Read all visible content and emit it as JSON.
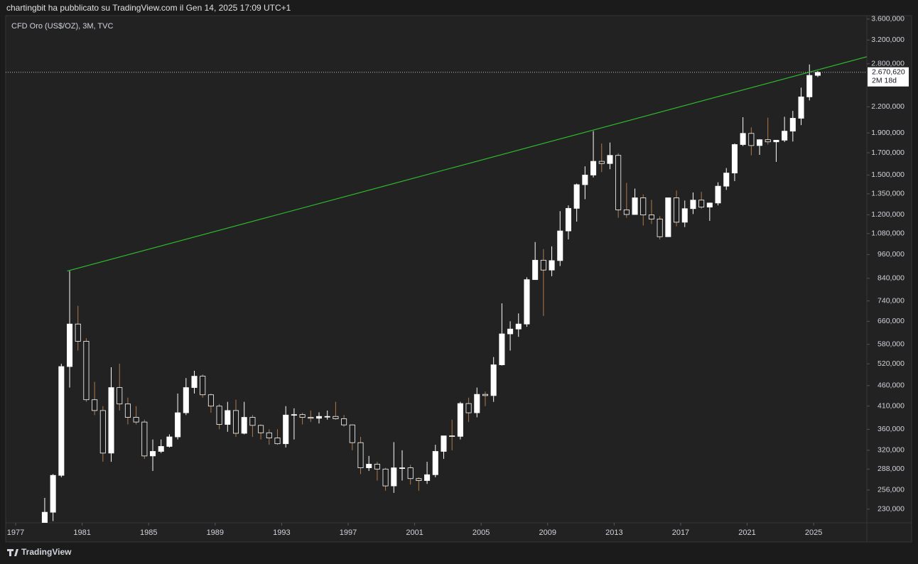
{
  "header": "chartingbit ha pubblicato su TradingView.com il Gen 14, 2025 17:09 UTC+1",
  "footer": "TradingView",
  "chart_data": {
    "type": "candlestick",
    "title": "CFD Oro (US$/OZ), 3M, TVC",
    "log_scale": true,
    "up_color": "#ffffff",
    "down_color": "#1e1e1e",
    "wick_color": "#b07a4a",
    "trendline_color": "#2fb82f",
    "xlim": [
      1976.4,
      2028.2
    ],
    "xticks": [
      1977,
      1981,
      1985,
      1989,
      1993,
      1997,
      2001,
      2005,
      2009,
      2013,
      2017,
      2021,
      2025
    ],
    "ylim": [
      213,
      3670
    ],
    "yticks": [
      {
        "value": 230,
        "label": "230,000"
      },
      {
        "value": 256,
        "label": "256,000"
      },
      {
        "value": 288,
        "label": "288,000"
      },
      {
        "value": 320,
        "label": "320,000"
      },
      {
        "value": 360,
        "label": "360,000"
      },
      {
        "value": 410,
        "label": "410,000"
      },
      {
        "value": 460,
        "label": "460,000"
      },
      {
        "value": 520,
        "label": "520,000"
      },
      {
        "value": 580,
        "label": "580,000"
      },
      {
        "value": 660,
        "label": "660,000"
      },
      {
        "value": 740,
        "label": "740,000"
      },
      {
        "value": 840,
        "label": "840,000"
      },
      {
        "value": 960,
        "label": "960,000"
      },
      {
        "value": 1080,
        "label": "1.080,000"
      },
      {
        "value": 1200,
        "label": "1.200,000"
      },
      {
        "value": 1350,
        "label": "1.350,000"
      },
      {
        "value": 1500,
        "label": "1.500,000"
      },
      {
        "value": 1700,
        "label": "1.700,000"
      },
      {
        "value": 1900,
        "label": "1.900,000"
      },
      {
        "value": 2200,
        "label": "2.200,000"
      },
      {
        "value": 2800,
        "label": "2.800,000"
      },
      {
        "value": 3200,
        "label": "3.200,000"
      },
      {
        "value": 3600,
        "label": "3.600,000"
      }
    ],
    "last_price": {
      "value": 2670.62,
      "label": "2.670,620"
    },
    "countdown": "2M 18d",
    "trendline": {
      "x": [
        1980.1,
        2028.2
      ],
      "values": [
        875,
        2914
      ]
    },
    "x": [
      1978.5,
      1979,
      1979.5,
      1980,
      1980.5,
      1981,
      1981.5,
      1982,
      1982.5,
      1983,
      1983.5,
      1984,
      1984.5,
      1985,
      1985.5,
      1986,
      1986.5,
      1987,
      1987.5,
      1988,
      1988.5,
      1989,
      1989.5,
      1990,
      1990.5,
      1991,
      1991.5,
      1992,
      1992.5,
      1993,
      1993.5,
      1994,
      1994.5,
      1995,
      1995.5,
      1996,
      1996.5,
      1997,
      1997.5,
      1998,
      1998.5,
      1999,
      1999.5,
      2000,
      2000.5,
      2001,
      2001.5,
      2002,
      2002.5,
      2003,
      2003.5,
      2004,
      2004.5,
      2005,
      2005.5,
      2006,
      2006.5,
      2007,
      2007.5,
      2008,
      2008.5,
      2009,
      2009.5,
      2010,
      2010.5,
      2011,
      2011.5,
      2012,
      2012.5,
      2013,
      2013.5,
      2014,
      2014.5,
      2015,
      2015.5,
      2016,
      2016.5,
      2017,
      2017.5,
      2018,
      2018.5,
      2019,
      2019.5,
      2020,
      2020.5,
      2021,
      2021.5,
      2022,
      2022.5,
      2023,
      2023.5,
      2024,
      2024.5,
      2025
    ],
    "open": [
      185,
      226,
      278,
      512,
      650,
      590,
      425,
      400,
      315,
      455,
      415,
      385,
      375,
      310,
      318,
      327,
      345,
      395,
      455,
      485,
      437,
      410,
      370,
      400,
      352,
      385,
      368,
      353,
      343,
      332,
      390,
      391,
      385,
      383,
      387,
      387,
      382,
      369,
      334,
      290,
      296,
      288,
      262,
      290,
      290,
      273,
      270,
      279,
      318,
      347,
      346,
      416,
      395,
      438,
      435,
      517,
      615,
      632,
      650,
      834,
      930,
      880,
      928,
      1096,
      1244,
      1421,
      1500,
      1620,
      1600,
      1675,
      1234,
      1202,
      1320,
      1199,
      1172,
      1061,
      1320,
      1151,
      1242,
      1303,
      1253,
      1282,
      1409,
      1517,
      1780,
      1895,
      1770,
      1829,
      1807,
      1824,
      1919,
      2063,
      2326,
      2624
    ],
    "high": [
      245,
      280,
      520,
      875,
      720,
      600,
      470,
      410,
      510,
      520,
      430,
      410,
      380,
      340,
      340,
      350,
      440,
      480,
      500,
      490,
      440,
      415,
      420,
      425,
      420,
      390,
      370,
      360,
      360,
      410,
      405,
      395,
      400,
      396,
      400,
      420,
      390,
      370,
      345,
      310,
      300,
      290,
      335,
      320,
      295,
      275,
      300,
      330,
      330,
      380,
      420,
      430,
      455,
      445,
      540,
      730,
      660,
      690,
      845,
      1030,
      990,
      1005,
      1225,
      1265,
      1430,
      1575,
      1920,
      1790,
      1800,
      1695,
      1435,
      1390,
      1345,
      1305,
      1190,
      1305,
      1375,
      1300,
      1360,
      1365,
      1285,
      1440,
      1560,
      1790,
      2075,
      1960,
      1835,
      2070,
      1810,
      2080,
      2150,
      2450,
      2790,
      2690
    ],
    "low": [
      180,
      215,
      275,
      455,
      560,
      420,
      390,
      300,
      300,
      400,
      370,
      370,
      305,
      285,
      315,
      325,
      340,
      390,
      440,
      430,
      395,
      360,
      355,
      345,
      350,
      345,
      340,
      330,
      330,
      325,
      340,
      370,
      375,
      372,
      380,
      380,
      365,
      320,
      280,
      285,
      270,
      255,
      252,
      270,
      264,
      255,
      265,
      275,
      305,
      320,
      340,
      375,
      385,
      410,
      420,
      515,
      560,
      605,
      640,
      845,
      680,
      850,
      900,
      1045,
      1155,
      1310,
      1480,
      1525,
      1550,
      1180,
      1180,
      1200,
      1130,
      1140,
      1045,
      1060,
      1125,
      1120,
      1205,
      1240,
      1160,
      1265,
      1380,
      1450,
      1765,
      1675,
      1680,
      1780,
      1615,
      1805,
      1810,
      1985,
      2280,
      2600
    ],
    "close": [
      226,
      278,
      512,
      650,
      590,
      425,
      400,
      315,
      455,
      415,
      385,
      375,
      310,
      318,
      327,
      345,
      395,
      455,
      485,
      437,
      410,
      370,
      400,
      352,
      385,
      368,
      353,
      343,
      332,
      390,
      391,
      385,
      383,
      387,
      387,
      382,
      369,
      334,
      290,
      296,
      288,
      262,
      290,
      290,
      273,
      270,
      279,
      318,
      347,
      346,
      416,
      395,
      438,
      435,
      517,
      615,
      632,
      650,
      834,
      930,
      880,
      928,
      1096,
      1244,
      1421,
      1500,
      1620,
      1600,
      1675,
      1234,
      1202,
      1320,
      1199,
      1172,
      1061,
      1320,
      1151,
      1242,
      1303,
      1253,
      1282,
      1409,
      1517,
      1780,
      1895,
      1770,
      1829,
      1807,
      1824,
      1919,
      2063,
      2326,
      2624,
      2670.62
    ]
  }
}
